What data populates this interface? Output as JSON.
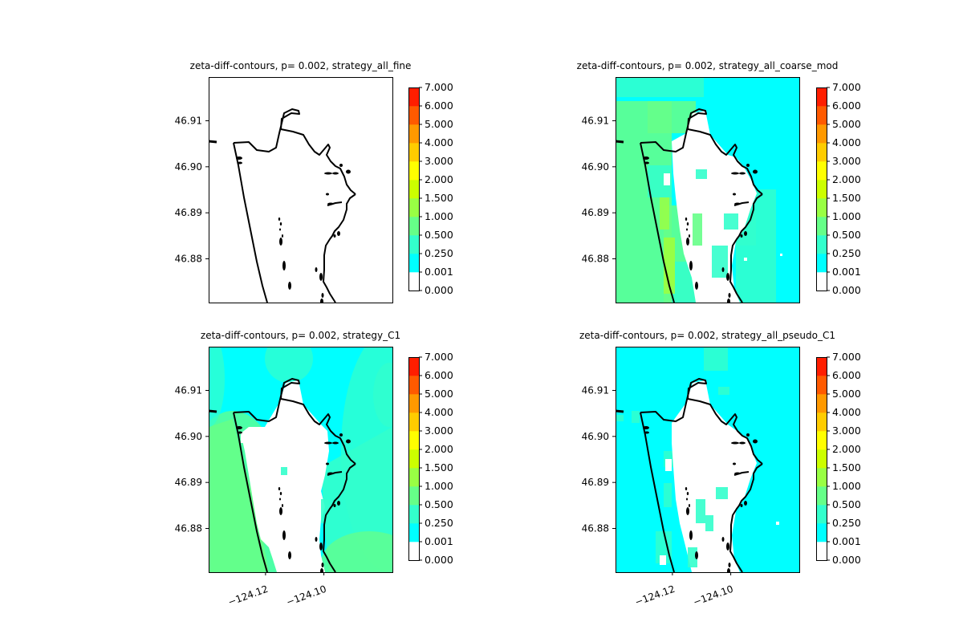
{
  "chart_data": {
    "type": "contour",
    "colorbar": {
      "levels": [
        0.0,
        0.001,
        0.25,
        0.5,
        1.0,
        1.5,
        2.0,
        3.0,
        4.0,
        5.0,
        6.0,
        7.0
      ],
      "tick_labels": [
        "0.000",
        "0.001",
        "0.250",
        "0.500",
        "1.000",
        "1.500",
        "2.000",
        "3.000",
        "4.000",
        "5.000",
        "6.000",
        "7.000"
      ],
      "colors": [
        "#ffffff",
        "#00ffff",
        "#33ffcc",
        "#66ff88",
        "#99ff44",
        "#ccff00",
        "#ffff00",
        "#ffcc00",
        "#ff9900",
        "#ff5a00",
        "#ff1e00"
      ]
    },
    "xlim": [
      -124.1395,
      -124.0765
    ],
    "ylim": [
      46.8705,
      46.9195
    ],
    "yticks": [
      46.88,
      46.89,
      46.9,
      46.91
    ],
    "ytick_labels": [
      "46.88",
      "46.89",
      "46.90",
      "46.91"
    ],
    "xticks": [
      -124.12,
      -124.1
    ],
    "xtick_labels": [
      "−124.12",
      "−124.10"
    ],
    "panels": [
      {
        "title": "zeta-diff-contours, p= 0.002, strategy_all_fine",
        "fill": "none",
        "show_xticks": false
      },
      {
        "title": "zeta-diff-contours, p= 0.002, strategy_all_coarse_mod",
        "fill": "coarse",
        "show_xticks": false
      },
      {
        "title": "zeta-diff-contours, p= 0.002, strategy_C1",
        "fill": "c1",
        "show_xticks": true
      },
      {
        "title": "zeta-diff-contours, p= 0.002, strategy_all_pseudo_C1",
        "fill": "pseudo",
        "show_xticks": true
      }
    ]
  }
}
